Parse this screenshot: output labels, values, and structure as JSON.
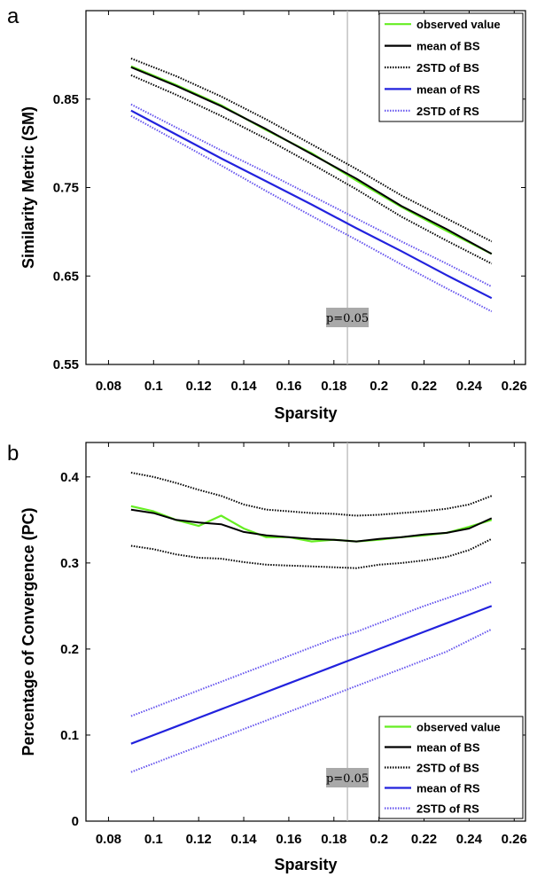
{
  "chart_data": [
    {
      "type": "line",
      "panel_label": "a",
      "xlabel": "Sparsity",
      "ylabel": "Similarity Metric (SM)",
      "xlim": [
        0.07,
        0.265
      ],
      "ylim": [
        0.55,
        0.95
      ],
      "xticks": [
        0.08,
        0.1,
        0.12,
        0.14,
        0.16,
        0.18,
        0.2,
        0.22,
        0.24,
        0.26
      ],
      "xtick_labels": [
        "0.08",
        "0.1",
        "0.12",
        "0.14",
        "0.16",
        "0.18",
        "0.2",
        "0.22",
        "0.24",
        "0.26"
      ],
      "yticks": [
        0.55,
        0.65,
        0.75,
        0.85
      ],
      "ytick_labels": [
        "0.55",
        "0.65",
        "0.75",
        "0.85"
      ],
      "legend_position": "top-right",
      "vline": {
        "x": 0.186,
        "label": "p=0.05"
      },
      "x": [
        0.09,
        0.11,
        0.13,
        0.15,
        0.17,
        0.19,
        0.21,
        0.23,
        0.25
      ],
      "series": [
        {
          "name": "observed value",
          "color": "#66ee22",
          "style": "solid",
          "values": [
            0.887,
            0.866,
            0.843,
            0.815,
            0.789,
            0.758,
            0.728,
            0.701,
            0.675
          ]
        },
        {
          "name": "mean of BS",
          "color": "#000000",
          "style": "solid",
          "values": [
            0.886,
            0.865,
            0.842,
            0.816,
            0.788,
            0.76,
            0.729,
            0.703,
            0.675
          ]
        },
        {
          "name": "2STD of BS",
          "color": "#000000",
          "style": "dotted",
          "values": [
            0.896,
            0.876,
            0.853,
            0.827,
            0.799,
            0.771,
            0.741,
            0.715,
            0.689
          ]
        },
        {
          "name": "2STD of BS",
          "color": "#000000",
          "style": "dotted",
          "values": [
            0.877,
            0.855,
            0.831,
            0.805,
            0.777,
            0.748,
            0.717,
            0.69,
            0.664
          ]
        },
        {
          "name": "mean of RS",
          "color": "#2222dd",
          "style": "solid",
          "values": [
            0.837,
            0.81,
            0.783,
            0.757,
            0.731,
            0.704,
            0.678,
            0.651,
            0.625
          ]
        },
        {
          "name": "2STD of RS",
          "color": "#6655ee",
          "style": "dotted",
          "values": [
            0.844,
            0.818,
            0.792,
            0.767,
            0.741,
            0.715,
            0.689,
            0.664,
            0.638
          ]
        },
        {
          "name": "2STD of RS",
          "color": "#6655ee",
          "style": "dotted",
          "values": [
            0.831,
            0.803,
            0.775,
            0.746,
            0.718,
            0.691,
            0.663,
            0.636,
            0.61
          ]
        }
      ]
    },
    {
      "type": "line",
      "panel_label": "b",
      "xlabel": "Sparsity",
      "ylabel": "Percentage of Convergence (PC)",
      "xlim": [
        0.07,
        0.265
      ],
      "ylim": [
        0,
        0.44
      ],
      "xticks": [
        0.08,
        0.1,
        0.12,
        0.14,
        0.16,
        0.18,
        0.2,
        0.22,
        0.24,
        0.26
      ],
      "xtick_labels": [
        "0.08",
        "0.1",
        "0.12",
        "0.14",
        "0.16",
        "0.18",
        "0.2",
        "0.22",
        "0.24",
        "0.26"
      ],
      "yticks": [
        0,
        0.1,
        0.2,
        0.3,
        0.4
      ],
      "ytick_labels": [
        "0",
        "0.1",
        "0.2",
        "0.3",
        "0.4"
      ],
      "legend_position": "bottom-right",
      "vline": {
        "x": 0.186,
        "label": "p=0.05"
      },
      "x": [
        0.09,
        0.1,
        0.11,
        0.12,
        0.13,
        0.14,
        0.15,
        0.16,
        0.17,
        0.18,
        0.19,
        0.2,
        0.21,
        0.22,
        0.23,
        0.24,
        0.25
      ],
      "series": [
        {
          "name": "observed value",
          "color": "#66ee22",
          "style": "solid",
          "values": [
            0.366,
            0.36,
            0.35,
            0.343,
            0.355,
            0.34,
            0.33,
            0.33,
            0.325,
            0.327,
            0.325,
            0.327,
            0.33,
            0.332,
            0.335,
            0.342,
            0.35
          ]
        },
        {
          "name": "mean of BS",
          "color": "#000000",
          "style": "solid",
          "values": [
            0.362,
            0.358,
            0.35,
            0.347,
            0.345,
            0.336,
            0.332,
            0.33,
            0.328,
            0.327,
            0.325,
            0.328,
            0.33,
            0.333,
            0.335,
            0.34,
            0.352
          ]
        },
        {
          "name": "2STD of BS",
          "color": "#000000",
          "style": "dotted",
          "values": [
            0.405,
            0.4,
            0.393,
            0.385,
            0.378,
            0.368,
            0.362,
            0.36,
            0.358,
            0.357,
            0.355,
            0.356,
            0.358,
            0.36,
            0.363,
            0.368,
            0.378
          ]
        },
        {
          "name": "2STD of BS",
          "color": "#000000",
          "style": "dotted",
          "values": [
            0.32,
            0.316,
            0.31,
            0.306,
            0.305,
            0.301,
            0.298,
            0.297,
            0.296,
            0.295,
            0.294,
            0.298,
            0.3,
            0.303,
            0.307,
            0.315,
            0.328
          ]
        },
        {
          "name": "mean of RS",
          "color": "#2222dd",
          "style": "solid",
          "values": [
            0.09,
            0.1,
            0.11,
            0.12,
            0.13,
            0.14,
            0.15,
            0.16,
            0.17,
            0.18,
            0.19,
            0.2,
            0.21,
            0.22,
            0.23,
            0.24,
            0.25
          ]
        },
        {
          "name": "2STD of RS",
          "color": "#6655ee",
          "style": "dotted",
          "values": [
            0.122,
            0.132,
            0.142,
            0.152,
            0.162,
            0.172,
            0.182,
            0.192,
            0.202,
            0.212,
            0.22,
            0.23,
            0.24,
            0.25,
            0.259,
            0.268,
            0.278
          ]
        },
        {
          "name": "2STD of RS",
          "color": "#6655ee",
          "style": "dotted",
          "values": [
            0.057,
            0.067,
            0.077,
            0.087,
            0.097,
            0.107,
            0.117,
            0.127,
            0.137,
            0.147,
            0.157,
            0.167,
            0.177,
            0.187,
            0.197,
            0.21,
            0.223
          ]
        }
      ]
    }
  ]
}
